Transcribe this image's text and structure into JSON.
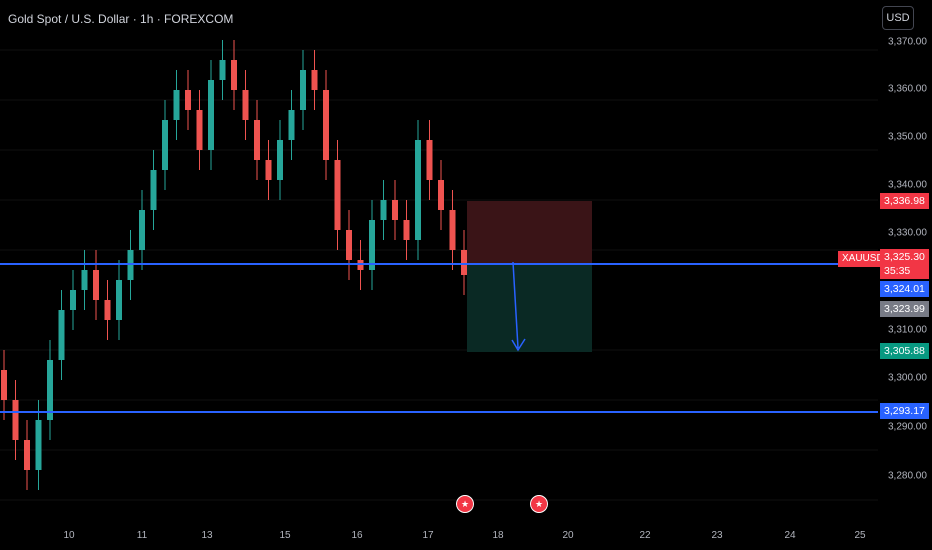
{
  "header": {
    "title": "Gold Spot / U.S. Dollar · 1h · FOREXCOM",
    "currency": "USD"
  },
  "y_axis": {
    "ticks": [
      "3,370.00",
      "3,360.00",
      "3,350.00",
      "3,340.00",
      "3,330.00",
      "3,310.00",
      "3,300.00",
      "3,290.00",
      "3,280.00"
    ],
    "tick_values": [
      3370,
      3360,
      3350,
      3340,
      3330,
      3310,
      3300,
      3290,
      3280
    ]
  },
  "x_axis": {
    "ticks": [
      "10",
      "11",
      "13",
      "15",
      "16",
      "17",
      "18",
      "20",
      "22",
      "23",
      "24",
      "25"
    ]
  },
  "price_labels": {
    "symbol": "XAUUSD",
    "last": "3,325.30",
    "countdown": "35:35",
    "stop": "3,336.98",
    "blue_line": "3,324.01",
    "gray": "3,323.99",
    "target": "3,305.88",
    "support": "3,293.17"
  },
  "colors": {
    "up": "#26a69a",
    "down": "#ef5350",
    "line": "#2962ff",
    "stop_zone": "#3d1518",
    "target_zone": "#0b2b26"
  },
  "events": [
    {
      "icon": "us-flag-icon"
    },
    {
      "icon": "us-flag-icon"
    }
  ],
  "chart_data": {
    "type": "candlestick",
    "series": [
      {
        "name": "XAUUSD",
        "closes": [
          3300,
          3292,
          3286,
          3296,
          3308,
          3318,
          3322,
          3326,
          3320,
          3316,
          3324,
          3330,
          3338,
          3346,
          3356,
          3362,
          3358,
          3350,
          3364,
          3368,
          3362,
          3356,
          3348,
          3344,
          3352,
          3358,
          3366,
          3362,
          3348,
          3334,
          3328,
          3326,
          3336,
          3340,
          3336,
          3332,
          3352,
          3344,
          3338,
          3330,
          3325
        ]
      }
    ],
    "levels": {
      "resistance": 3325.3,
      "support": 3293.17,
      "stop": 3336.98,
      "target": 3305.88
    },
    "ylim": [
      3276,
      3378
    ]
  }
}
